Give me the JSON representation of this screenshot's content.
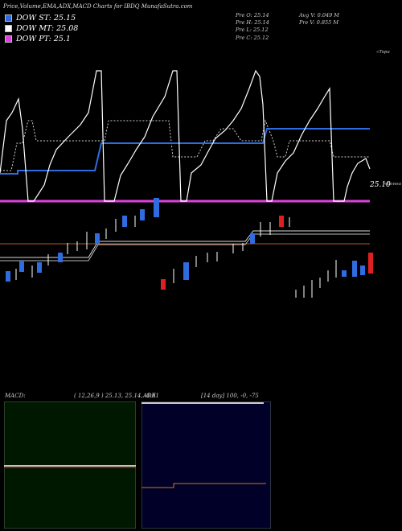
{
  "header": {
    "title": "Price,Volume,EMA,ADX,MACD Charts for IBDQ MunafaSutra.com"
  },
  "legend": [
    {
      "label": "DOW ST: 25.15",
      "color": "#2f6ce0"
    },
    {
      "label": "DOW MT: 25.08",
      "color": "#ffffff"
    },
    {
      "label": "DOW PT: 25.1",
      "color": "#e040e0"
    }
  ],
  "ohlc": {
    "open": "Pre   O: 25.14",
    "high": "Pre   H: 25.14",
    "low": "Pre   L: 25.12",
    "close": "Pre   C: 25.12",
    "avg_volume": "Avg V: 0.049 M",
    "volume": "Pre   V: 0.855 M"
  },
  "price_chart": {
    "upper_band_label": "«Topa",
    "lower_band_label": "«Lowsa",
    "last_price_label": "25.10"
  },
  "macd_panel": {
    "label": "MACD:",
    "values": "( 12,26,9 ) 25.13, 25.14, -0.01"
  },
  "adx_panel": {
    "label": "ADX",
    "values": "[14  day] 100, -0, -75"
  },
  "chart_data": [
    {
      "type": "line",
      "title": "Price,Volume,EMA,ADX,MACD Charts for IBDQ MunafaSutra.com",
      "series": [
        {
          "name": "DOW ST",
          "values": [
            25.15
          ],
          "color": "#2f6ce0"
        },
        {
          "name": "DOW MT",
          "values": [
            25.08
          ],
          "color": "#ffffff"
        },
        {
          "name": "DOW PT",
          "values": [
            25.1
          ],
          "color": "#e040e0"
        }
      ],
      "last_price": 25.1,
      "legend_position": "top-left"
    },
    {
      "type": "line",
      "title": "MACD",
      "params": [
        12,
        26,
        9
      ],
      "values": [
        25.13,
        25.14,
        -0.01
      ],
      "grid": false
    },
    {
      "type": "line",
      "title": "ADX",
      "period": 14,
      "values": [
        100,
        0,
        -75
      ],
      "grid": false
    }
  ]
}
